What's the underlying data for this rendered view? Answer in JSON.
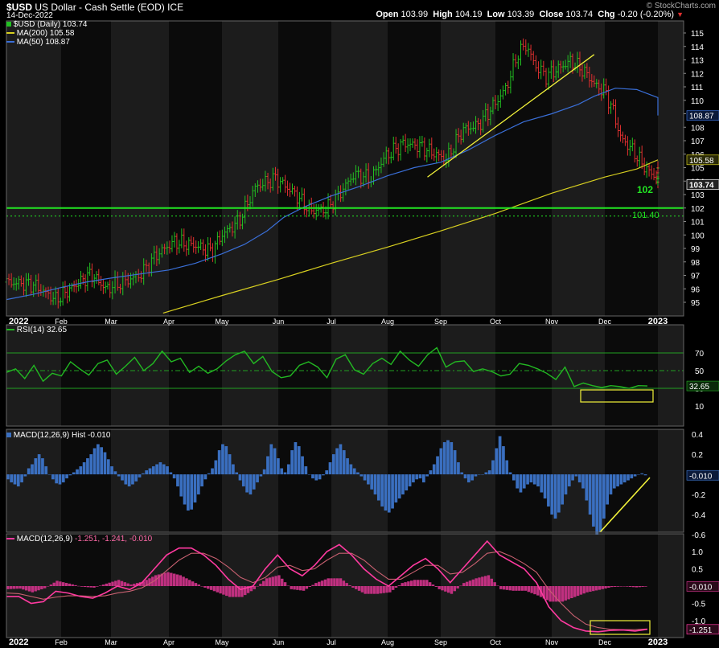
{
  "header": {
    "symbol": "$USD",
    "name": "US Dollar - Cash Settle (EOD)",
    "exchange": "ICE",
    "date": "14-Dec-2022",
    "open_label": "Open",
    "open": "103.99",
    "high_label": "High",
    "high": "104.19",
    "low_label": "Low",
    "low": "103.39",
    "close_label": "Close",
    "close": "103.74",
    "chg_label": "Chg",
    "chg": "-0.20 (-0.20%)",
    "watermark": "© StockCharts.com"
  },
  "legend": {
    "price": "$USD (Daily) 103.74",
    "ma200": "MA(200) 105.58",
    "ma50": "MA(50) 108.87",
    "rsi": "RSI(14) 32.65",
    "hist": "MACD(12,26,9) Hist -0.010",
    "macd_prefix": "MACD(12,26,9)",
    "macd_values": "-1.251, -1.241, -0.010"
  },
  "colors": {
    "price_up": "#22c022",
    "price_down": "#e03030",
    "ma50": "#3a6fd8",
    "ma200": "#d8d020",
    "support": "#22e622",
    "rsi": "#22b822",
    "hist": "#3a6fc0",
    "macd": "#ff3aa0",
    "signal": "#c86070",
    "macd_hist": "#c03080",
    "annot": "#f2f23a"
  },
  "chart_data": [
    {
      "type": "line",
      "title": "$USD US Dollar - Cash Settle (EOD)",
      "x_ticks": [
        "2022",
        "Feb",
        "Mar",
        "Apr",
        "May",
        "Jun",
        "Jul",
        "Aug",
        "Sep",
        "Oct",
        "Nov",
        "Dec",
        "2023"
      ],
      "ylim": [
        94.2,
        115.4
      ],
      "y_ticks": [
        95,
        96,
        97,
        98,
        99,
        100,
        101,
        102,
        103,
        104,
        105,
        106,
        107,
        108,
        109,
        110,
        111,
        112,
        113,
        114,
        115
      ],
      "series": [
        {
          "name": "$USD (Daily)",
          "points": [
            [
              0,
              96.5
            ],
            [
              0.5,
              96.3
            ],
            [
              0.9,
              95.2
            ],
            [
              1.3,
              96.3
            ],
            [
              1.6,
              97.1
            ],
            [
              1.9,
              96.0
            ],
            [
              2.2,
              96.5
            ],
            [
              2.5,
              97.0
            ],
            [
              2.8,
              98.6
            ],
            [
              3.1,
              99.5
            ],
            [
              3.5,
              99.2
            ],
            [
              3.8,
              98.8
            ],
            [
              4.0,
              100.0
            ],
            [
              4.3,
              101.0
            ],
            [
              4.6,
              103.6
            ],
            [
              4.95,
              104.2
            ],
            [
              5.3,
              103.1
            ],
            [
              5.6,
              101.8
            ],
            [
              5.9,
              101.9
            ],
            [
              6.1,
              102.8
            ],
            [
              6.4,
              104.5
            ],
            [
              6.7,
              104.2
            ],
            [
              6.95,
              105.8
            ],
            [
              7.3,
              106.8
            ],
            [
              7.6,
              106.6
            ],
            [
              7.9,
              106.0
            ],
            [
              8.1,
              105.6
            ],
            [
              8.4,
              107.8
            ],
            [
              8.7,
              108.2
            ],
            [
              9.0,
              109.8
            ],
            [
              9.2,
              111.0
            ],
            [
              9.4,
              113.5
            ],
            [
              9.55,
              114.1
            ],
            [
              9.7,
              112.6
            ],
            [
              9.9,
              111.8
            ],
            [
              10.1,
              112.3
            ],
            [
              10.35,
              112.9
            ],
            [
              10.6,
              112.2
            ],
            [
              10.85,
              111.0
            ],
            [
              11.0,
              110.7
            ],
            [
              11.15,
              109.3
            ],
            [
              11.3,
              107.2
            ],
            [
              11.5,
              106.4
            ],
            [
              11.8,
              104.8
            ],
            [
              12.0,
              104.2
            ],
            [
              12.2,
              104.7
            ],
            [
              12.35,
              103.7
            ]
          ]
        },
        {
          "name": "MA(200)",
          "points": [
            [
              2.9,
              94.2
            ],
            [
              4.0,
              95.5
            ],
            [
              5.0,
              96.7
            ],
            [
              6.0,
              97.9
            ],
            [
              7.0,
              99.1
            ],
            [
              8.0,
              100.3
            ],
            [
              9.0,
              101.6
            ],
            [
              10.0,
              103.1
            ],
            [
              11.0,
              104.3
            ],
            [
              11.6,
              104.9
            ],
            [
              12.3,
              105.58
            ]
          ]
        },
        {
          "name": "MA(50)",
          "points": [
            [
              0,
              95.2
            ],
            [
              0.5,
              95.6
            ],
            [
              1.0,
              96.1
            ],
            [
              1.5,
              96.5
            ],
            [
              2.0,
              96.8
            ],
            [
              2.5,
              97.1
            ],
            [
              3.0,
              97.4
            ],
            [
              3.5,
              97.9
            ],
            [
              4.0,
              98.6
            ],
            [
              4.4,
              99.3
            ],
            [
              4.8,
              100.3
            ],
            [
              5.1,
              101.3
            ],
            [
              5.5,
              102.1
            ],
            [
              6.0,
              102.9
            ],
            [
              6.5,
              103.6
            ],
            [
              7.0,
              104.4
            ],
            [
              7.5,
              105.0
            ],
            [
              8.0,
              105.4
            ],
            [
              8.5,
              106.3
            ],
            [
              9.0,
              107.4
            ],
            [
              9.5,
              108.4
            ],
            [
              10.0,
              109.0
            ],
            [
              10.5,
              109.7
            ],
            [
              10.8,
              110.3
            ],
            [
              11.2,
              110.9
            ],
            [
              11.6,
              110.8
            ],
            [
              12.0,
              110.2
            ],
            [
              12.4,
              108.87
            ]
          ]
        }
      ],
      "levels": [
        {
          "label": "102",
          "value": 102
        },
        {
          "label": "101.40",
          "value": 101.4
        }
      ],
      "trendlines": [
        {
          "x": [
            7.75,
            10.8
          ],
          "y": [
            104.3,
            113.4
          ]
        }
      ],
      "axis_labels": [
        "115",
        "114",
        "113",
        "112",
        "111",
        "110",
        "109",
        "108",
        "107",
        "106",
        "105",
        "104",
        "103",
        "102",
        "101",
        "100",
        "99",
        "98",
        "97",
        "96",
        "95"
      ],
      "last_labels": [
        {
          "text": "108.87",
          "value": 108.87
        },
        {
          "text": "105.58",
          "value": 105.58
        },
        {
          "text": "103.74",
          "value": 103.74
        }
      ]
    },
    {
      "type": "line",
      "title": "RSI(14) 32.65",
      "ylim": [
        0,
        90
      ],
      "y_ticks": [
        10,
        30,
        50,
        70
      ],
      "series": [
        {
          "name": "RSI(14)",
          "values": [
            48,
            52,
            41,
            56,
            38,
            47,
            44,
            60,
            52,
            45,
            58,
            62,
            46,
            55,
            65,
            50,
            58,
            72,
            60,
            64,
            48,
            55,
            47,
            52,
            61,
            68,
            72,
            58,
            66,
            49,
            42,
            44,
            56,
            60,
            54,
            42,
            63,
            68,
            51,
            46,
            58,
            64,
            57,
            72,
            62,
            55,
            68,
            76,
            54,
            60,
            61,
            49,
            52,
            49,
            44,
            46,
            58,
            56,
            52,
            47,
            40,
            54,
            32,
            36,
            33,
            31,
            33,
            32,
            30,
            33,
            32.65
          ]
        }
      ],
      "levels": [
        70,
        50,
        30
      ],
      "last_label": "32.65"
    },
    {
      "type": "bar",
      "title": "MACD(12,26,9) Hist -0.010",
      "ylim": [
        -0.7,
        0.48
      ],
      "y_ticks": [
        0.4,
        0.2,
        -0.2,
        -0.4,
        -0.6
      ],
      "values": [
        -0.05,
        -0.08,
        -0.1,
        -0.12,
        -0.08,
        -0.02,
        0.06,
        0.1,
        0.16,
        0.2,
        0.16,
        0.08,
        0.0,
        -0.05,
        -0.09,
        -0.1,
        -0.08,
        -0.04,
        -0.01,
        0.02,
        0.05,
        0.08,
        0.12,
        0.16,
        0.2,
        0.26,
        0.3,
        0.27,
        0.22,
        0.15,
        0.08,
        0.03,
        -0.02,
        -0.06,
        -0.1,
        -0.12,
        -0.1,
        -0.07,
        -0.03,
        0.01,
        0.04,
        0.06,
        0.08,
        0.1,
        0.12,
        0.1,
        0.08,
        0.02,
        -0.04,
        -0.12,
        -0.22,
        -0.3,
        -0.36,
        -0.35,
        -0.28,
        -0.2,
        -0.12,
        -0.05,
        0.01,
        0.06,
        0.14,
        0.24,
        0.3,
        0.28,
        0.2,
        0.1,
        0.02,
        -0.06,
        -0.12,
        -0.18,
        -0.2,
        -0.15,
        -0.08,
        -0.02,
        0.05,
        0.18,
        0.3,
        0.26,
        0.16,
        0.06,
        0.02,
        0.1,
        0.24,
        0.32,
        0.28,
        0.18,
        0.08,
        0.0,
        -0.04,
        -0.06,
        -0.05,
        -0.01,
        0.04,
        0.12,
        0.2,
        0.26,
        0.3,
        0.24,
        0.16,
        0.1,
        0.06,
        0.02,
        -0.02,
        -0.06,
        -0.1,
        -0.15,
        -0.2,
        -0.26,
        -0.32,
        -0.36,
        -0.38,
        -0.34,
        -0.28,
        -0.24,
        -0.2,
        -0.16,
        -0.12,
        -0.08,
        -0.05,
        -0.04,
        -0.08,
        -0.02,
        0.04,
        0.1,
        0.18,
        0.26,
        0.32,
        0.34,
        0.32,
        0.24,
        0.12,
        0.02,
        -0.04,
        -0.08,
        -0.06,
        -0.02,
        0.0,
        0.0,
        0.02,
        0.04,
        0.14,
        0.26,
        0.38,
        0.28,
        0.14,
        0.02,
        -0.06,
        -0.14,
        -0.18,
        -0.14,
        -0.1,
        -0.08,
        -0.1,
        -0.12,
        -0.18,
        -0.24,
        -0.32,
        -0.4,
        -0.44,
        -0.38,
        -0.3,
        -0.2,
        -0.12,
        -0.06,
        -0.02,
        -0.08,
        -0.14,
        -0.26,
        -0.4,
        -0.52,
        -0.6,
        -0.58,
        -0.44,
        -0.3,
        -0.2,
        -0.14,
        -0.12,
        -0.1,
        -0.08,
        -0.06,
        -0.04,
        -0.02,
        0.0,
        0.01,
        -0.01
      ],
      "last_label": "-0.010"
    },
    {
      "type": "line",
      "title": "MACD(12,26,9) -1.251, -1.241, -0.010",
      "ylim": [
        -1.55,
        1.3
      ],
      "y_ticks": [
        1.0,
        0.5,
        -0.5,
        -1.0
      ],
      "series": [
        {
          "name": "MACD(12,26,9)",
          "values": [
            -0.3,
            -0.3,
            -0.5,
            -0.45,
            -0.15,
            -0.2,
            -0.3,
            -0.35,
            -0.2,
            0.0,
            -0.1,
            0.1,
            0.5,
            0.9,
            1.1,
            1.1,
            0.9,
            0.6,
            0.2,
            -0.1,
            0.0,
            0.5,
            0.9,
            0.5,
            0.3,
            0.6,
            1.0,
            1.2,
            0.9,
            0.5,
            0.2,
            0.0,
            0.3,
            0.6,
            0.8,
            0.5,
            0.1,
            0.5,
            0.9,
            1.3,
            0.9,
            0.7,
            0.5,
            0.1,
            -0.6,
            -1.0,
            -1.2,
            -1.3,
            -1.32,
            -1.28,
            -1.27,
            -1.3,
            -1.25
          ]
        },
        {
          "name": "Signal",
          "values": [
            -0.2,
            -0.22,
            -0.3,
            -0.38,
            -0.32,
            -0.28,
            -0.28,
            -0.3,
            -0.28,
            -0.2,
            -0.15,
            -0.05,
            0.15,
            0.45,
            0.75,
            0.95,
            0.95,
            0.8,
            0.55,
            0.25,
            0.1,
            0.25,
            0.55,
            0.6,
            0.45,
            0.5,
            0.75,
            0.95,
            0.95,
            0.75,
            0.45,
            0.2,
            0.2,
            0.4,
            0.6,
            0.6,
            0.35,
            0.4,
            0.65,
            0.95,
            1.0,
            0.85,
            0.65,
            0.4,
            -0.1,
            -0.5,
            -0.85,
            -1.1,
            -1.2,
            -1.25,
            -1.26,
            -1.26,
            -1.24
          ]
        }
      ],
      "last_label": "-0.010",
      "last_label2": "-1.251"
    }
  ]
}
